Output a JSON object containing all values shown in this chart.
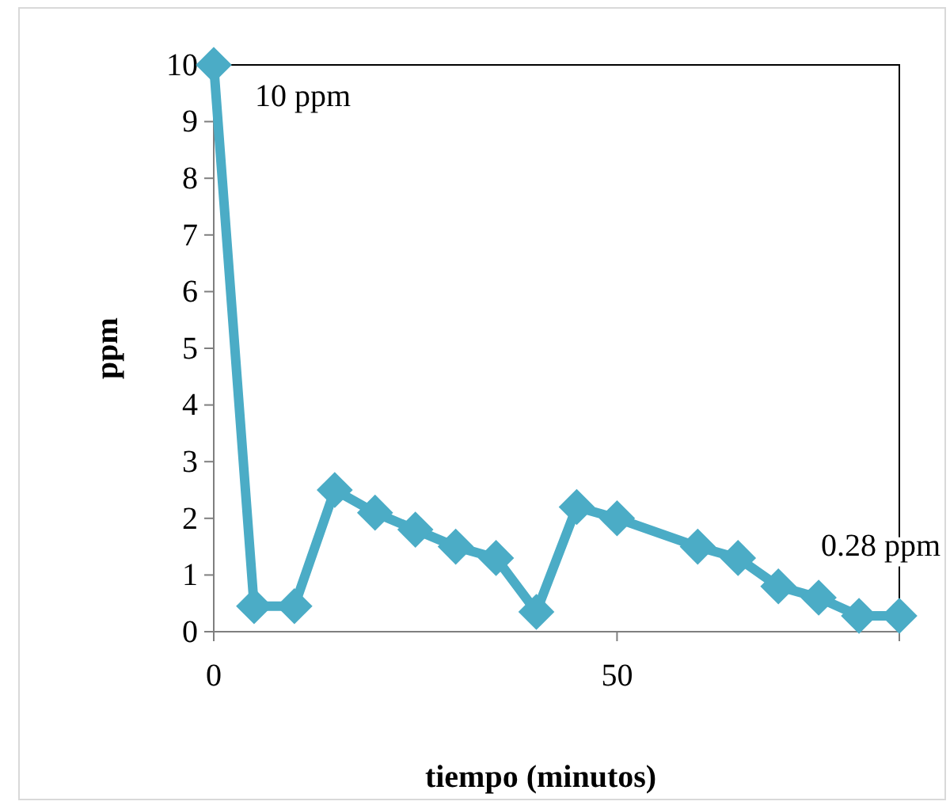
{
  "chart_data": {
    "type": "line",
    "xlabel": "tiempo (minutos)",
    "ylabel": "ppm",
    "x": [
      0,
      5,
      10,
      15,
      20,
      25,
      30,
      35,
      40,
      45,
      50,
      60,
      65,
      70,
      75,
      80,
      85
    ],
    "series": [
      {
        "color": "#4bacc6",
        "values": [
          10,
          0.45,
          0.45,
          2.5,
          2.1,
          1.8,
          1.5,
          1.3,
          0.35,
          2.2,
          2.0,
          1.5,
          1.3,
          0.8,
          0.6,
          0.28,
          0.28
        ]
      }
    ],
    "xlim": [
      0,
      85
    ],
    "xticks": [
      0,
      50
    ],
    "ylim": [
      0,
      10
    ],
    "yticks": [
      0,
      1,
      2,
      3,
      4,
      5,
      6,
      7,
      8,
      9,
      10
    ],
    "marker": "diamond",
    "grid": false,
    "annotations": [
      {
        "text": "10 ppm",
        "x": 0,
        "y": 10
      },
      {
        "text": "0.28 ppm",
        "x": 85,
        "y": 0.28
      }
    ]
  }
}
